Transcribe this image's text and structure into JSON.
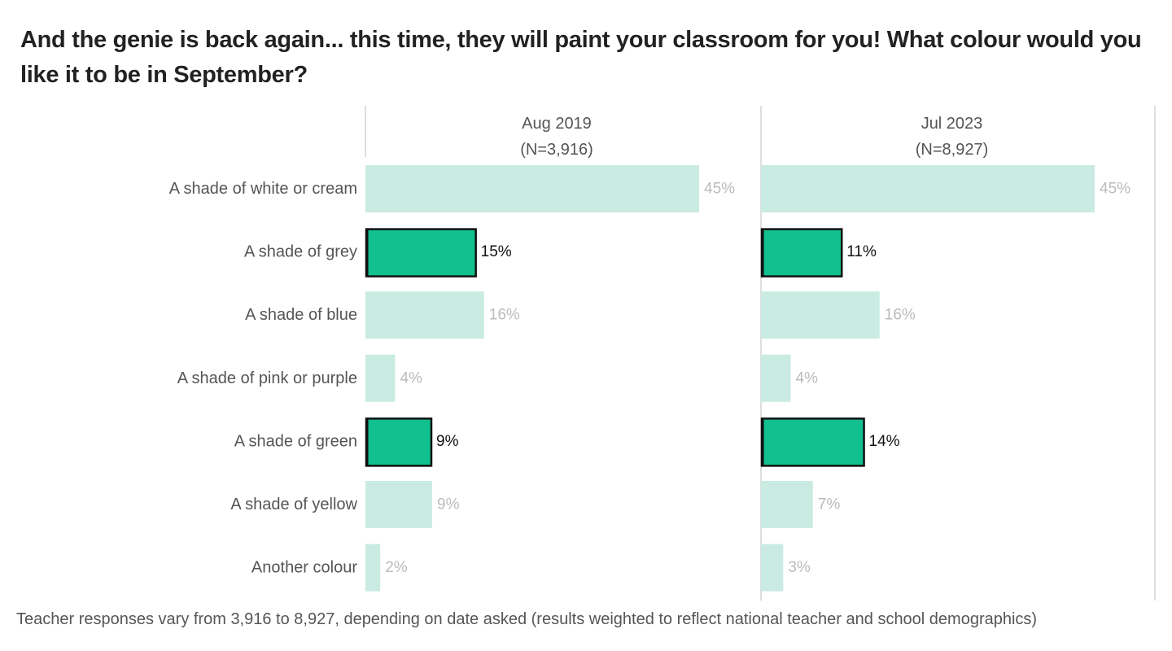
{
  "chart_data": {
    "type": "bar",
    "orientation": "horizontal",
    "title": "And the genie is back again... this time, they will paint your classroom for you! What colour would you like it to be in September?",
    "categories": [
      "A shade of white or cream",
      "A shade of grey",
      "A shade of blue",
      "A shade of pink or purple",
      "A shade of green",
      "A shade of yellow",
      "Another colour"
    ],
    "highlighted_categories": [
      "A shade of grey",
      "A shade of green"
    ],
    "series": [
      {
        "name": "Aug 2019",
        "subtitle": "(N=3,916)",
        "values": [
          45,
          15,
          16,
          4,
          9,
          9,
          2
        ],
        "labels": [
          "45%",
          "15%",
          "16%",
          "4%",
          "9%",
          "9%",
          "2%"
        ]
      },
      {
        "name": "Jul 2023",
        "subtitle": "(N=8,927)",
        "values": [
          45,
          11,
          16,
          4,
          14,
          7,
          3
        ],
        "labels": [
          "45%",
          "11%",
          "16%",
          "4%",
          "14%",
          "7%",
          "3%"
        ]
      }
    ],
    "xlim": [
      0,
      50
    ],
    "unit": "%",
    "colors": {
      "muted_bar": "#c9ebe2",
      "highlight_bar": "#12bf8f",
      "highlight_border": "#111111",
      "muted_label": "#bbbbbb",
      "highlight_label": "#111111",
      "category_label": "#555555",
      "panel_line": "#c8c8c8"
    }
  },
  "footer": "Teacher responses vary from 3,916 to 8,927, depending on date asked (results weighted to reflect national teacher and school demographics)"
}
